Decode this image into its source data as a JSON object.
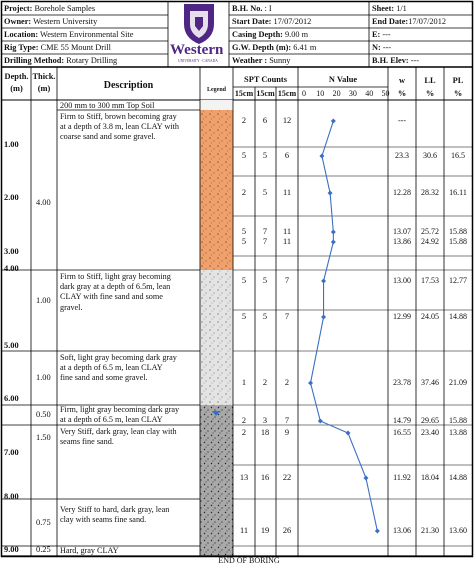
{
  "header": {
    "project_label": "Project:",
    "project": "Borehole Samples",
    "owner_label": "Owner:",
    "owner": "Western University",
    "location_label": "Location:",
    "location": "Western Environmental Site",
    "rig_label": "Rig Type:",
    "rig": "CME 55 Mount Drill",
    "drilling_label": "Drilling Method:",
    "drilling": "Rotary Drilling",
    "bh_label": "B.H. No.",
    "bh": ": I",
    "start_label": "Start Date:",
    "start": "17/07/2012",
    "casing_label": "Casing Depth:",
    "casing": "9.00 m",
    "gw_label": "G.W. Depth (m):",
    "gw": "6.41 m",
    "weather_label": "Weather :",
    "weather": "Sunny",
    "sheet_label": "Sheet:",
    "sheet": "1/1",
    "end_label": "End Date:",
    "end": "17/07/2012",
    "e_label": "E:",
    "e": "---",
    "n_label": "N:",
    "n": "---",
    "elev_label": "B.H. Elev:",
    "elev": "---",
    "logo_text": "Western",
    "logo_sub": "UNIVERSITY · CANADA"
  },
  "columns": {
    "depth": "Depth.",
    "depth_unit": "(m)",
    "thick": "Thick.",
    "thick_unit": "(m)",
    "description": "Description",
    "legend": "Legend",
    "spt": "SPT Counts",
    "spt_sub": [
      "15cm",
      "15cm",
      "15cm"
    ],
    "nvalue": "N Value",
    "n_ticks": [
      "0",
      "10",
      "20",
      "30",
      "40",
      "50"
    ],
    "w": "w",
    "w_unit": "%",
    "ll": "LL",
    "ll_unit": "%",
    "pl": "PL",
    "pl_unit": "%"
  },
  "depth_ticks": [
    "1.00",
    "2.00",
    "3.00",
    "4.00",
    "5.00",
    "6.00",
    "7.00",
    "8.00",
    "9.00"
  ],
  "layers": [
    {
      "thick": "",
      "desc": [
        "200 mm to 300 mm Top Soil"
      ]
    },
    {
      "thick": "4.00",
      "desc": [
        "Firm to Stiff, brown becoming gray",
        "at a depth of 3.8 m, lean CLAY with",
        "coarse sand and some gravel."
      ]
    },
    {
      "thick": "1.00",
      "desc": [
        "Firm to Stiff, light gray becoming",
        "dark gray at a depth of 6.5m, lean",
        "CLAY with fine sand and some",
        "gravel."
      ]
    },
    {
      "thick": "1.00",
      "desc": [
        "Soft, light gray becoming dark gray",
        "at a depth of 6.5 m, lean CLAY",
        "fine sand and some gravel."
      ]
    },
    {
      "thick": "0.50",
      "desc": [
        "Firm, light gray becoming dark gray",
        "at a depth of 6.5 m, lean CLAY"
      ]
    },
    {
      "thick": "1.50",
      "desc": [
        "Very Stiff, dark gray, lean clay with",
        "seams fine sand."
      ]
    },
    {
      "thick": "0.75",
      "desc": [
        "Very Stiff to hard, dark gray, lean",
        "clay with seams fine sand."
      ]
    },
    {
      "thick": "0.25",
      "desc": [
        "Hard, gray CLAY"
      ]
    }
  ],
  "samples": [
    {
      "spt": [
        "2",
        "6",
        "12"
      ],
      "n": 18,
      "w": "---",
      "ll": "",
      "pl": ""
    },
    {
      "spt": [
        "5",
        "5",
        "6"
      ],
      "n": 11,
      "w": "23.3",
      "ll": "30.6",
      "pl": "16.5"
    },
    {
      "spt": [
        "2",
        "5",
        "11"
      ],
      "n": 16,
      "w": "12.28",
      "ll": "28.32",
      "pl": "16.11"
    },
    {
      "spt": [
        "5",
        "7",
        "11"
      ],
      "n": 18,
      "w": "13.07",
      "ll": "25.72",
      "pl": "15.88"
    },
    {
      "spt": [
        "5",
        "7",
        "11"
      ],
      "n": 18,
      "w": "13.86",
      "ll": "24.92",
      "pl": "15.88"
    },
    {
      "spt": [
        "5",
        "5",
        "7"
      ],
      "n": 12,
      "w": "13.00",
      "ll": "17.53",
      "pl": "12.77"
    },
    {
      "spt": [
        "5",
        "5",
        "7"
      ],
      "n": 12,
      "w": "12.99",
      "ll": "24.05",
      "pl": "14.88"
    },
    {
      "spt": [
        "1",
        "2",
        "2"
      ],
      "n": 4,
      "w": "23.78",
      "ll": "37.46",
      "pl": "21.09"
    },
    {
      "spt": [
        "2",
        "3",
        "7"
      ],
      "n": 10,
      "w": "14.79",
      "ll": "29.65",
      "pl": "15.88"
    },
    {
      "spt": [
        "2",
        "18",
        "9"
      ],
      "n": 27,
      "w": "16.55",
      "ll": "23.40",
      "pl": "13.88"
    },
    {
      "spt": [
        "13",
        "16",
        "22"
      ],
      "n": 38,
      "w": "11.92",
      "ll": "18.04",
      "pl": "14.88"
    },
    {
      "spt": [
        "11",
        "19",
        "26"
      ],
      "n": 45,
      "w": "13.06",
      "ll": "21.30",
      "pl": "13.60"
    }
  ],
  "footer": "END OF BORING",
  "colors": {
    "topsoil": "#f0a06a",
    "gray_soil": "#cfcfcf",
    "dark_soil": "#9a9a9a",
    "line": "#3a6fc4"
  }
}
